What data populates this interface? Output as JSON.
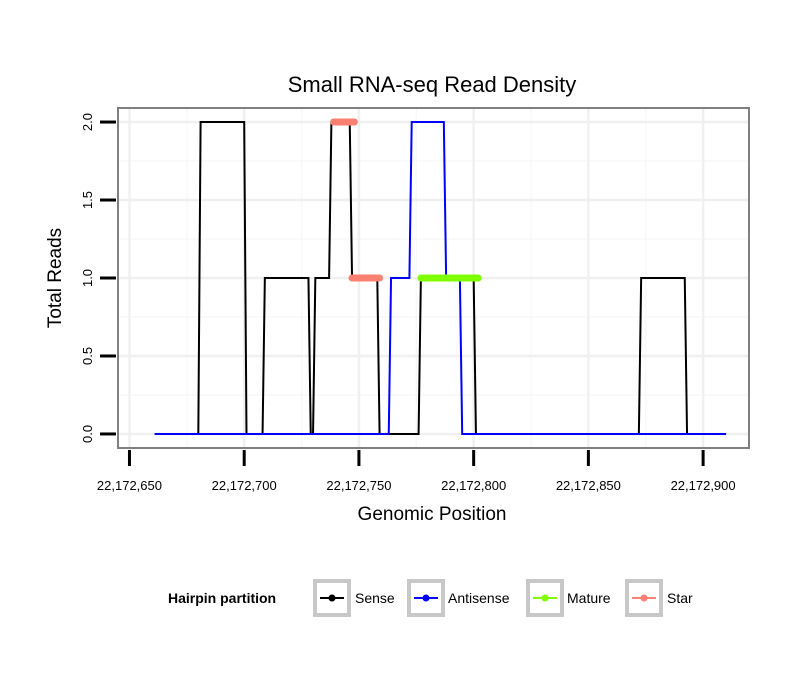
{
  "chart_data": {
    "type": "line",
    "title": "Small RNA-seq Read Density",
    "xlabel": "Genomic Position",
    "ylabel": "Total Reads",
    "xlim": [
      22172645,
      22172920
    ],
    "ylim": [
      -0.09,
      2.09
    ],
    "x_ticks": [
      22172650,
      22172700,
      22172750,
      22172800,
      22172850,
      22172900
    ],
    "x_tick_labels": [
      "22,172,650",
      "22,172,700",
      "22,172,750",
      "22,172,800",
      "22,172,850",
      "22,172,900"
    ],
    "y_ticks": [
      0,
      0.5,
      1,
      1.5,
      2
    ],
    "y_tick_labels": [
      "0.0",
      "0.5",
      "1.0",
      "1.5",
      "2.0"
    ],
    "grid": true,
    "legend": {
      "title": "Hairpin partition",
      "position": "bottom",
      "entries": [
        "Sense",
        "Antisense",
        "Mature",
        "Star"
      ]
    },
    "series": [
      {
        "name": "Sense",
        "color": "#000000",
        "x": [
          22172661,
          22172680,
          22172681,
          22172700,
          22172701,
          22172708,
          22172709,
          22172728,
          22172729,
          22172730,
          22172731,
          22172737,
          22172738,
          22172740,
          22172746,
          22172747,
          22172758,
          22172759,
          22172776,
          22172777,
          22172800,
          22172801,
          22172872,
          22172873,
          22172892,
          22172893,
          22172910
        ],
        "y": [
          0,
          0,
          2,
          2,
          0,
          0,
          1,
          1,
          0,
          0,
          1,
          1,
          2,
          2,
          2,
          1,
          1,
          0,
          0,
          1,
          1,
          0,
          0,
          1,
          1,
          0,
          0
        ]
      },
      {
        "name": "Antisense",
        "color": "#0000ff",
        "x": [
          22172661,
          22172763,
          22172764,
          22172772,
          22172773,
          22172787,
          22172788,
          22172794,
          22172795,
          22172893,
          22172910
        ],
        "y": [
          0,
          0,
          1,
          1,
          2,
          2,
          1,
          1,
          0,
          0,
          0
        ]
      },
      {
        "name": "Mature",
        "color": "#7fff00",
        "x": [
          22172777,
          22172802
        ],
        "y": [
          1,
          1
        ]
      },
      {
        "name": "Star",
        "color": "#fa8072",
        "segments": [
          {
            "x": [
              22172739,
              22172748
            ],
            "y": [
              2,
              2
            ]
          },
          {
            "x": [
              22172747,
              22172759
            ],
            "y": [
              1,
              1
            ]
          }
        ]
      }
    ]
  }
}
